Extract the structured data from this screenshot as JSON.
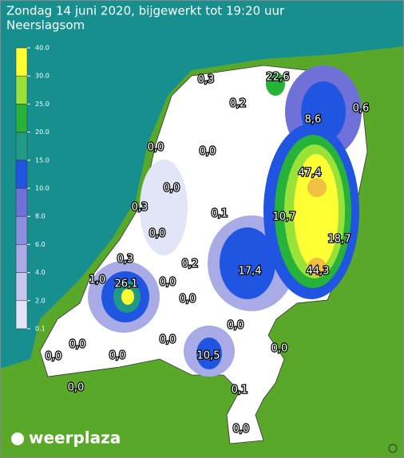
{
  "header": {
    "title": "Zondag 14 juni 2020, bijgewerkt tot 19:20 uur",
    "subtitle": "Neerslagsom"
  },
  "legend": {
    "ticks": [
      {
        "value": 40,
        "label": "40.0"
      },
      {
        "value": 30,
        "label": "30.0"
      },
      {
        "value": 25,
        "label": "25.0"
      },
      {
        "value": 20,
        "label": "20.0"
      },
      {
        "value": 15,
        "label": "15.0"
      },
      {
        "value": 10,
        "label": "10.0"
      },
      {
        "value": 8,
        "label": "8.0"
      },
      {
        "value": 6,
        "label": "6.0"
      },
      {
        "value": 4,
        "label": "4.0"
      },
      {
        "value": 2,
        "label": "2.0"
      },
      {
        "value": 0.1,
        "label": "0.1"
      }
    ],
    "colors": [
      "#ffff33",
      "#99e23a",
      "#27b33a",
      "#1f9a86",
      "#1f55e0",
      "#6f71d9",
      "#8c8edf",
      "#a9abe7",
      "#c6c8ef",
      "#e2e4f7"
    ]
  },
  "map": {
    "labels": [
      "0,3",
      "22,6",
      "0,2",
      "0,6",
      "8,6",
      "0,0",
      "0,0",
      "47,4",
      "0,0",
      "0,3",
      "0,1",
      "10,7",
      "0,0",
      "18,7",
      "0,3",
      "0,2",
      "17,4",
      "44,3",
      "1,0",
      "26,1",
      "0,0",
      "0,0",
      "0,0",
      "0,0",
      "0,0",
      "0,0",
      "0,0",
      "0,0",
      "10,5",
      "0,1",
      "0,0",
      "0,0"
    ]
  },
  "footer": {
    "brand": "weerplaza"
  }
}
